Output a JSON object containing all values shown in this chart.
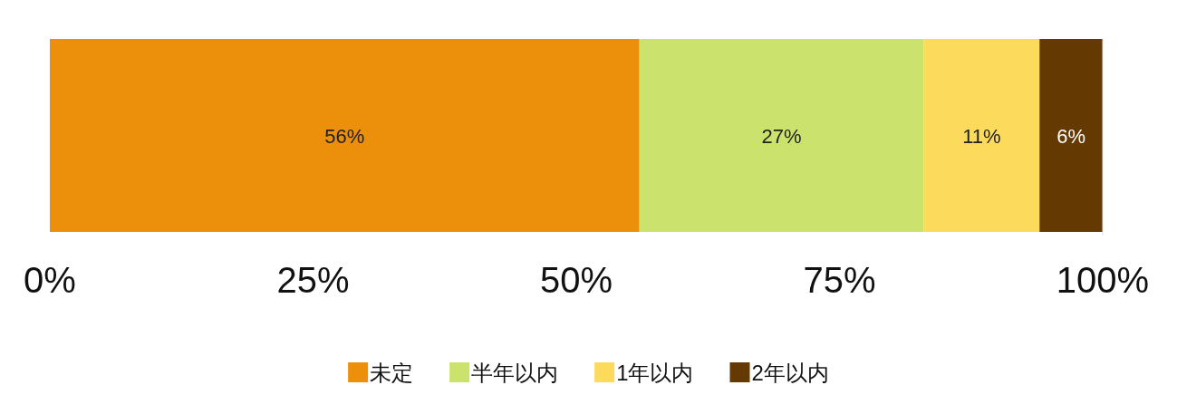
{
  "chart_data": {
    "type": "bar",
    "orientation": "horizontal",
    "stacked": true,
    "categories": [
      null
    ],
    "series": [
      {
        "name": "未定",
        "color": "#ec8f0a",
        "values": [
          56
        ],
        "value_labels": [
          "56%"
        ]
      },
      {
        "name": "半年以内",
        "color": "#cbe26c",
        "values": [
          27
        ],
        "value_labels": [
          "27%"
        ]
      },
      {
        "name": "1年以内",
        "color": "#fcdb5c",
        "values": [
          11
        ],
        "value_labels": [
          "11%"
        ]
      },
      {
        "name": "2年以内",
        "color": "#643a02",
        "values": [
          6
        ],
        "value_labels": [
          "6%"
        ]
      }
    ],
    "xlim": [
      0,
      100
    ],
    "xticks": [
      {
        "value": 0,
        "label": "0%"
      },
      {
        "value": 25,
        "label": "25%"
      },
      {
        "value": 50,
        "label": "50%"
      },
      {
        "value": 75,
        "label": "75%"
      },
      {
        "value": 100,
        "label": "100%"
      }
    ],
    "grid": false,
    "legend": "bottom"
  }
}
